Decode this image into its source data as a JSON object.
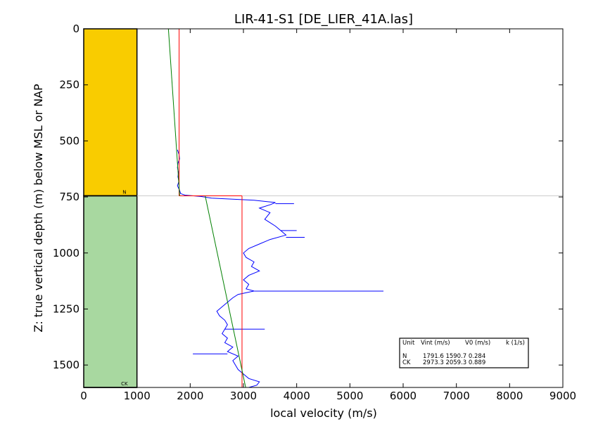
{
  "chart_data": {
    "type": "line",
    "title": "LIR-41-S1 [DE_LIER_41A.las]",
    "xlabel": "local velocity (m/s)",
    "ylabel": "Z: true vertical depth (m) below MSL or NAP",
    "xlim": [
      0,
      9000
    ],
    "ylim": [
      1600,
      0
    ],
    "x_ticks": [
      "0",
      "1000",
      "2000",
      "3000",
      "4000",
      "5000",
      "6000",
      "7000",
      "8000",
      "9000"
    ],
    "y_ticks": [
      "0",
      "250",
      "500",
      "750",
      "1000",
      "1250",
      "1500"
    ],
    "y_tick_values": [
      0,
      250,
      500,
      750,
      1000,
      1250,
      1500
    ],
    "units": [
      {
        "name": "N",
        "top": 0,
        "base": 745,
        "color": "#f9cc00",
        "vint": 1791.6,
        "v0": 1590.7,
        "k": 0.284
      },
      {
        "name": "CK",
        "top": 745,
        "base": 1600,
        "color": "#a8d8a0",
        "vint": 2973.3,
        "v0": 2059.3,
        "k": 0.889
      }
    ],
    "series": [
      {
        "kind": "interval_velocity",
        "color": "#ff0000",
        "segments": [
          {
            "v": 1791.6,
            "z0": 0,
            "z1": 745
          },
          {
            "v": 2973.3,
            "z0": 745,
            "z1": 1600
          }
        ]
      },
      {
        "kind": "linear_trend",
        "color": "#008000",
        "segments": [
          {
            "z0": 0,
            "z1": 745,
            "v0": 1590.7,
            "k": 0.284
          },
          {
            "z0": 745,
            "z1": 1600,
            "v0": 2059.3,
            "k": 0.889
          }
        ]
      },
      {
        "kind": "log_velocity",
        "color": "#0000ff",
        "points": [
          [
            540,
            1760
          ],
          [
            560,
            1790
          ],
          [
            580,
            1800
          ],
          [
            600,
            1770
          ],
          [
            620,
            1760
          ],
          [
            640,
            1780
          ],
          [
            660,
            1770
          ],
          [
            680,
            1790
          ],
          [
            700,
            1760
          ],
          [
            720,
            1800
          ],
          [
            735,
            1820
          ],
          [
            742,
            1900
          ],
          [
            748,
            2200
          ],
          [
            755,
            2400
          ],
          [
            765,
            3200
          ],
          [
            775,
            3600
          ],
          [
            785,
            3500
          ],
          [
            800,
            3300
          ],
          [
            820,
            3500
          ],
          [
            850,
            3400
          ],
          [
            880,
            3600
          ],
          [
            900,
            3700
          ],
          [
            920,
            3800
          ],
          [
            940,
            3500
          ],
          [
            960,
            3300
          ],
          [
            980,
            3100
          ],
          [
            1000,
            3000
          ],
          [
            1020,
            3050
          ],
          [
            1040,
            3200
          ],
          [
            1060,
            3150
          ],
          [
            1080,
            3300
          ],
          [
            1100,
            3100
          ],
          [
            1120,
            3000
          ],
          [
            1140,
            3100
          ],
          [
            1160,
            3050
          ],
          [
            1170,
            3200
          ],
          [
            1185,
            2900
          ],
          [
            1200,
            2800
          ],
          [
            1220,
            2700
          ],
          [
            1240,
            2600
          ],
          [
            1260,
            2500
          ],
          [
            1280,
            2550
          ],
          [
            1300,
            2650
          ],
          [
            1320,
            2700
          ],
          [
            1340,
            2650
          ],
          [
            1360,
            2600
          ],
          [
            1380,
            2700
          ],
          [
            1400,
            2650
          ],
          [
            1420,
            2800
          ],
          [
            1440,
            2700
          ],
          [
            1460,
            2900
          ],
          [
            1480,
            2800
          ],
          [
            1500,
            2850
          ],
          [
            1520,
            2900
          ],
          [
            1540,
            3000
          ],
          [
            1560,
            3100
          ],
          [
            1575,
            3300
          ],
          [
            1590,
            3250
          ],
          [
            1600,
            3100
          ]
        ],
        "spikes": [
          [
            1170,
            5630
          ],
          [
            900,
            4000
          ],
          [
            930,
            4150
          ],
          [
            780,
            3950
          ],
          [
            1450,
            2050
          ],
          [
            1340,
            3400
          ]
        ]
      }
    ],
    "markers": [
      {
        "label": "N",
        "z": 745
      },
      {
        "label": "CK",
        "z": 1600
      }
    ],
    "legend_table": {
      "headers": [
        "Unit",
        "Vint (m/s)",
        "V0 (m/s)",
        "k (1/s)"
      ],
      "rows": [
        [
          "N",
          "1791.6",
          "1590.7",
          "0.284"
        ],
        [
          "CK",
          "2973.3",
          "2059.3",
          "0.889"
        ]
      ]
    },
    "legend_position": "lower-right",
    "grid": false
  }
}
